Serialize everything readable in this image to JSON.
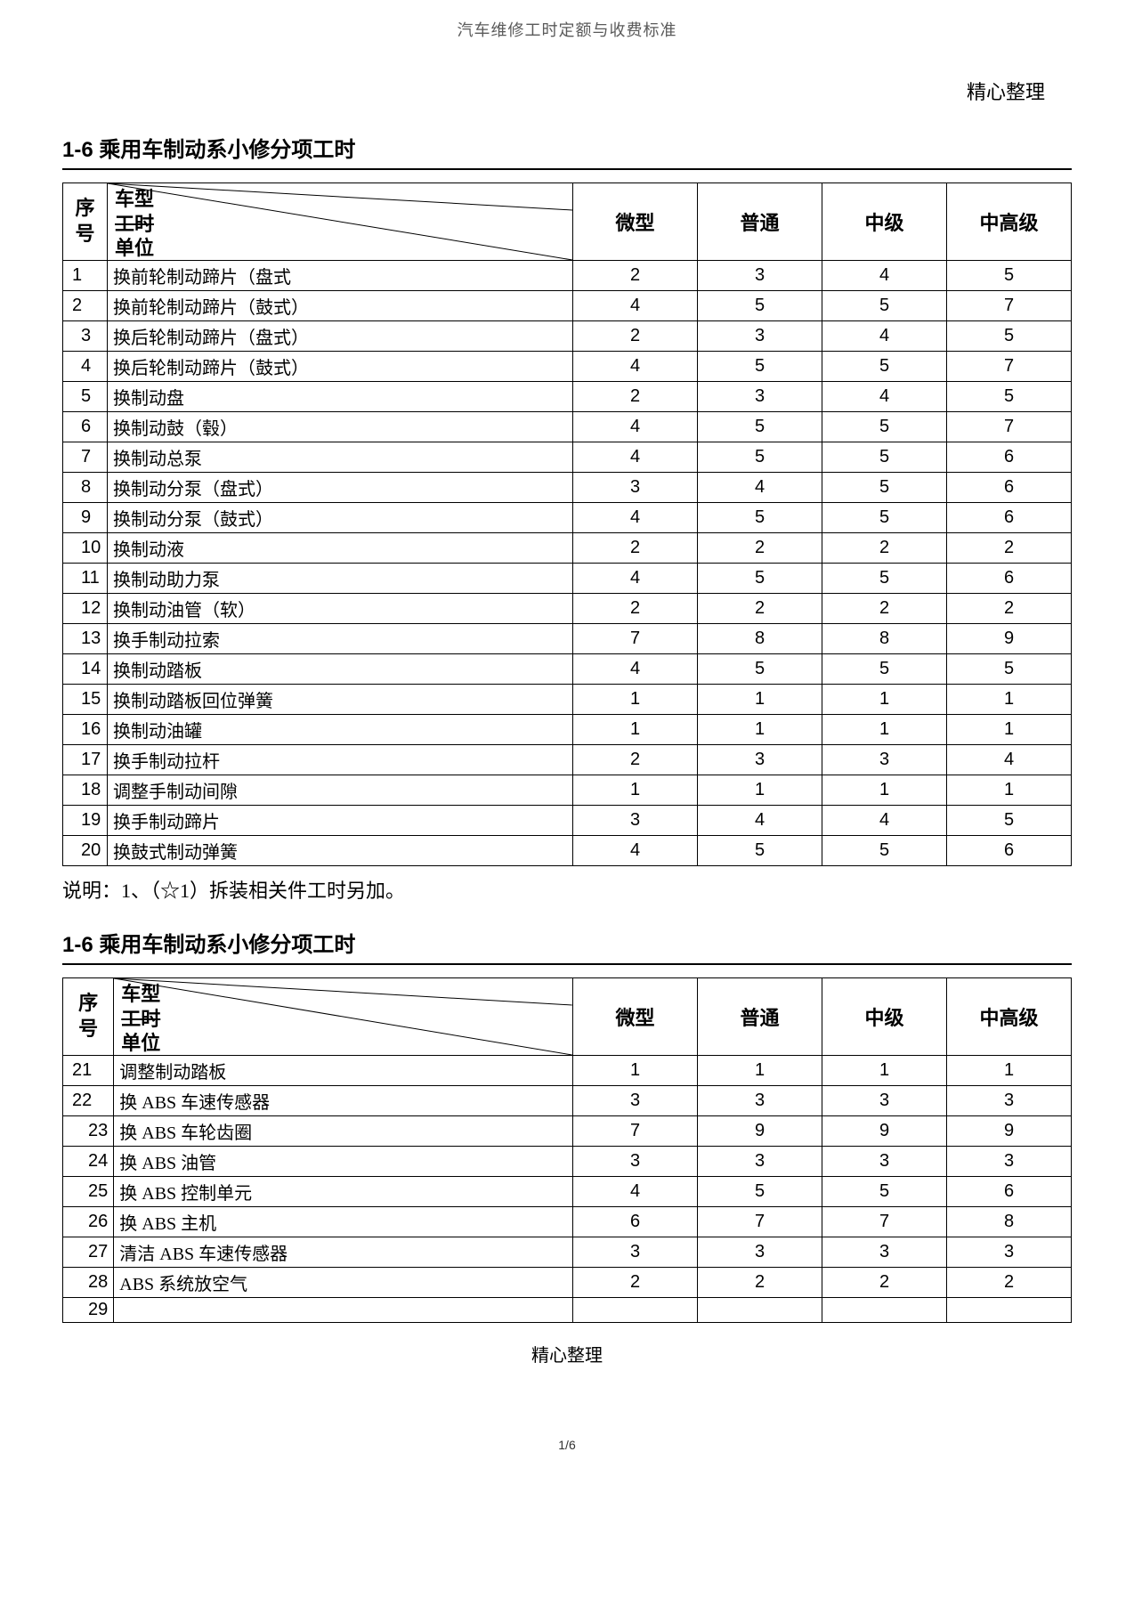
{
  "doc_title": "汽车维修工时定额与收费标准",
  "top_right": "精心整理",
  "section1": {
    "title": "1-6 乘用车制动系小修分项工时",
    "header": {
      "seq": "序号",
      "diag": {
        "l1": "车型",
        "l2": "工时",
        "l3": "单位"
      },
      "cols": [
        "微型",
        "普通",
        "中级",
        "中高级"
      ]
    },
    "rows": [
      {
        "n": "1",
        "indent": 0,
        "desc": "换前轮制动蹄片（盘式",
        "v": [
          "2",
          "3",
          "4",
          "5"
        ]
      },
      {
        "n": "2",
        "indent": 0,
        "desc": "换前轮制动蹄片（鼓式）",
        "v": [
          "4",
          "5",
          "5",
          "7"
        ]
      },
      {
        "n": "3",
        "indent": 1,
        "desc": "换后轮制动蹄片（盘式）",
        "v": [
          "2",
          "3",
          "4",
          "5"
        ]
      },
      {
        "n": "4",
        "indent": 1,
        "desc": "换后轮制动蹄片（鼓式）",
        "v": [
          "4",
          "5",
          "5",
          "7"
        ]
      },
      {
        "n": "5",
        "indent": 1,
        "desc": "换制动盘",
        "v": [
          "2",
          "3",
          "4",
          "5"
        ]
      },
      {
        "n": "6",
        "indent": 1,
        "desc": "换制动鼓（毂）",
        "v": [
          "4",
          "5",
          "5",
          "7"
        ]
      },
      {
        "n": "7",
        "indent": 1,
        "desc": "换制动总泵",
        "v": [
          "4",
          "5",
          "5",
          "6"
        ]
      },
      {
        "n": "8",
        "indent": 1,
        "desc": "换制动分泵（盘式）",
        "v": [
          "3",
          "4",
          "5",
          "6"
        ]
      },
      {
        "n": "9",
        "indent": 1,
        "desc": "换制动分泵（鼓式）",
        "v": [
          "4",
          "5",
          "5",
          "6"
        ]
      },
      {
        "n": "10",
        "indent": 1,
        "desc": "换制动液",
        "v": [
          "2",
          "2",
          "2",
          "2"
        ]
      },
      {
        "n": "11",
        "indent": 1,
        "desc": "换制动助力泵",
        "v": [
          "4",
          "5",
          "5",
          "6"
        ]
      },
      {
        "n": "12",
        "indent": 1,
        "desc": "换制动油管（软）",
        "v": [
          "2",
          "2",
          "2",
          "2"
        ]
      },
      {
        "n": "13",
        "indent": 1,
        "desc": "换手制动拉索",
        "v": [
          "7",
          "8",
          "8",
          "9"
        ]
      },
      {
        "n": "14",
        "indent": 1,
        "desc": "换制动踏板",
        "v": [
          "4",
          "5",
          "5",
          "5"
        ]
      },
      {
        "n": "15",
        "indent": 1,
        "desc": "换制动踏板回位弹簧",
        "v": [
          "1",
          "1",
          "1",
          "1"
        ]
      },
      {
        "n": "16",
        "indent": 1,
        "desc": "换制动油罐",
        "v": [
          "1",
          "1",
          "1",
          "1"
        ]
      },
      {
        "n": "17",
        "indent": 1,
        "desc": "换手制动拉杆",
        "v": [
          "2",
          "3",
          "3",
          "4"
        ]
      },
      {
        "n": "18",
        "indent": 1,
        "desc": "调整手制动间隙",
        "v": [
          "1",
          "1",
          "1",
          "1"
        ]
      },
      {
        "n": "19",
        "indent": 1,
        "desc": "换手制动蹄片",
        "v": [
          "3",
          "4",
          "4",
          "5"
        ]
      },
      {
        "n": "20",
        "indent": 1,
        "desc": "换鼓式制动弹簧",
        "v": [
          "4",
          "5",
          "5",
          "6"
        ]
      }
    ],
    "note": "说明：1、（☆1）拆装相关件工时另加。"
  },
  "section2": {
    "title": "1-6 乘用车制动系小修分项工时",
    "header": {
      "seq": "序号",
      "diag": {
        "l1": "车型",
        "l2": "工时",
        "l3": "单位"
      },
      "cols": [
        "微型",
        "普通",
        "中级",
        "中高级"
      ]
    },
    "rows": [
      {
        "n": "21",
        "indent": 0,
        "desc": "调整制动踏板",
        "v": [
          "1",
          "1",
          "1",
          "1"
        ]
      },
      {
        "n": "22",
        "indent": 0,
        "desc": "换 ABS 车速传感器",
        "v": [
          "3",
          "3",
          "3",
          "3"
        ]
      },
      {
        "n": "23",
        "indent": 2,
        "desc": "换 ABS 车轮齿圈",
        "v": [
          "7",
          "9",
          "9",
          "9"
        ]
      },
      {
        "n": "24",
        "indent": 2,
        "desc": "换 ABS 油管",
        "v": [
          "3",
          "3",
          "3",
          "3"
        ]
      },
      {
        "n": "25",
        "indent": 2,
        "desc": "换 ABS 控制单元",
        "v": [
          "4",
          "5",
          "5",
          "6"
        ]
      },
      {
        "n": "26",
        "indent": 2,
        "desc": "换 ABS 主机",
        "v": [
          "6",
          "7",
          "7",
          "8"
        ]
      },
      {
        "n": "27",
        "indent": 2,
        "desc": "清洁 ABS 车速传感器",
        "v": [
          "3",
          "3",
          "3",
          "3"
        ]
      },
      {
        "n": "28",
        "indent": 2,
        "desc": "ABS 系统放空气",
        "v": [
          "2",
          "2",
          "2",
          "2"
        ]
      },
      {
        "n": "29",
        "indent": 2,
        "desc": "",
        "v": [
          "",
          "",
          "",
          ""
        ]
      }
    ]
  },
  "footer_center": "精心整理",
  "page_num": "1/6",
  "colors": {
    "text": "#000000",
    "bg": "#ffffff",
    "subtitle": "#5a5a5a"
  }
}
